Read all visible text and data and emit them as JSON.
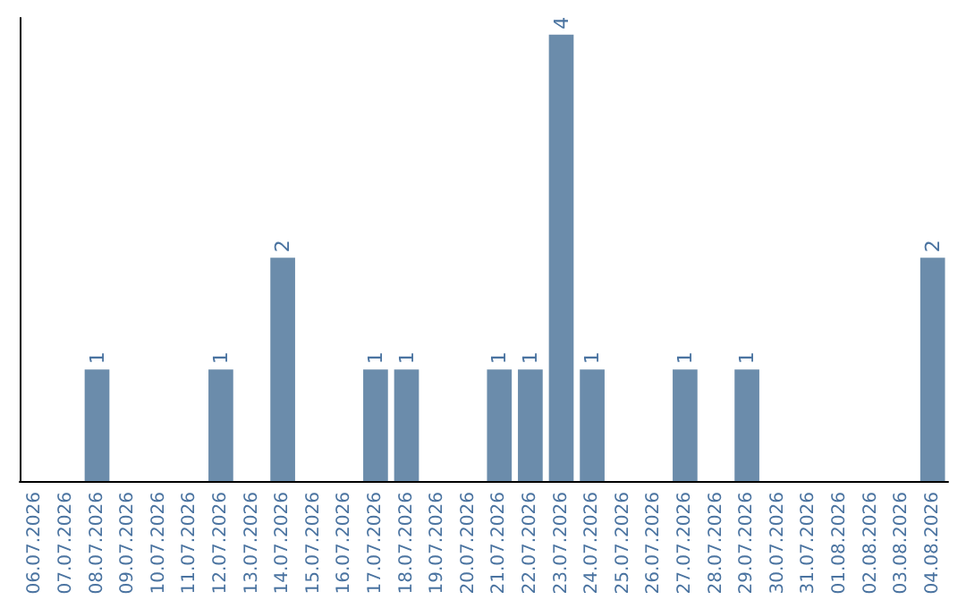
{
  "chart_data": {
    "type": "bar",
    "categories": [
      "06.07.2026",
      "07.07.2026",
      "08.07.2026",
      "09.07.2026",
      "10.07.2026",
      "11.07.2026",
      "12.07.2026",
      "13.07.2026",
      "14.07.2026",
      "15.07.2026",
      "16.07.2026",
      "17.07.2026",
      "18.07.2026",
      "19.07.2026",
      "20.07.2026",
      "21.07.2026",
      "22.07.2026",
      "23.07.2026",
      "24.07.2026",
      "25.07.2026",
      "26.07.2026",
      "27.07.2026",
      "28.07.2026",
      "29.07.2026",
      "30.07.2026",
      "31.07.2026",
      "01.08.2026",
      "02.08.2026",
      "03.08.2026",
      "04.08.2026"
    ],
    "values": [
      0,
      0,
      1,
      0,
      0,
      0,
      1,
      0,
      2,
      0,
      0,
      1,
      1,
      0,
      0,
      1,
      1,
      4,
      1,
      0,
      0,
      1,
      0,
      1,
      0,
      0,
      0,
      0,
      0,
      2
    ],
    "value_labels": [
      null,
      null,
      "1",
      null,
      null,
      null,
      "1",
      null,
      "2",
      null,
      null,
      "1",
      "1",
      null,
      null,
      "1",
      "1",
      "4",
      "1",
      null,
      null,
      "1",
      null,
      "1",
      null,
      null,
      null,
      null,
      null,
      "2"
    ],
    "color": "#6b8cab",
    "ylim": [
      0,
      4.15
    ],
    "tick_labels": "x"
  }
}
